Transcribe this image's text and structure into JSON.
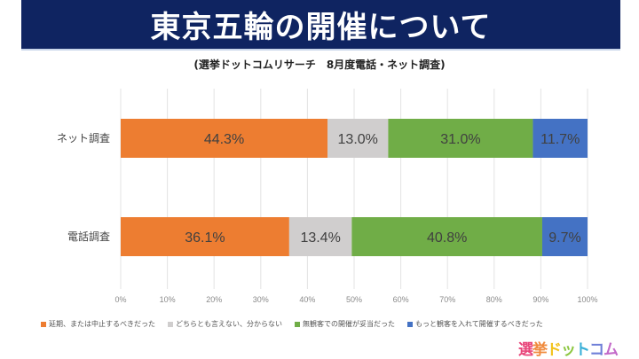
{
  "header": {
    "title": "東京五輪の開催について",
    "subtitle": "(選挙ドットコムリサーチ　8月度電話・ネット調査)"
  },
  "chart_data": {
    "type": "bar",
    "orientation": "horizontal",
    "stacked": true,
    "title": "東京五輪の開催について",
    "subtitle": "(選挙ドットコムリサーチ　8月度電話・ネット調査)",
    "categories": [
      "ネット調査",
      "電話調査"
    ],
    "series": [
      {
        "name": "延期、または中止するべきだった",
        "color": "#ed7d31",
        "values": [
          44.3,
          36.1
        ],
        "labels": [
          "44.3%",
          "36.1%"
        ]
      },
      {
        "name": "どちらとも言えない、分からない",
        "color": "#d0cece",
        "values": [
          13.0,
          13.4
        ],
        "labels": [
          "13.0%",
          "13.4%"
        ]
      },
      {
        "name": "無観客での開催が妥当だった",
        "color": "#70ad47",
        "values": [
          31.0,
          40.8
        ],
        "labels": [
          "31.0%",
          "40.8%"
        ]
      },
      {
        "name": "もっと観客を入れて開催するべきだった",
        "color": "#4472c4",
        "values": [
          11.7,
          9.7
        ],
        "labels": [
          "11.7%",
          "9.7%"
        ]
      }
    ],
    "xlim": [
      0,
      100
    ],
    "xticks": [
      "0%",
      "10%",
      "20%",
      "30%",
      "40%",
      "50%",
      "60%",
      "70%",
      "80%",
      "90%",
      "100%"
    ],
    "xlabel": "",
    "ylabel": "",
    "grid": "vertical",
    "legend": "bottom"
  },
  "brand": {
    "logo_chars": [
      "選",
      "挙",
      "ド",
      "ッ",
      "ト",
      "コ",
      "ム"
    ],
    "logo_colors": [
      "#e8457a",
      "#f08a3c",
      "#f2c21b",
      "#8cc63f",
      "#3ab0d8",
      "#6f7fd8",
      "#c36ac9"
    ]
  }
}
